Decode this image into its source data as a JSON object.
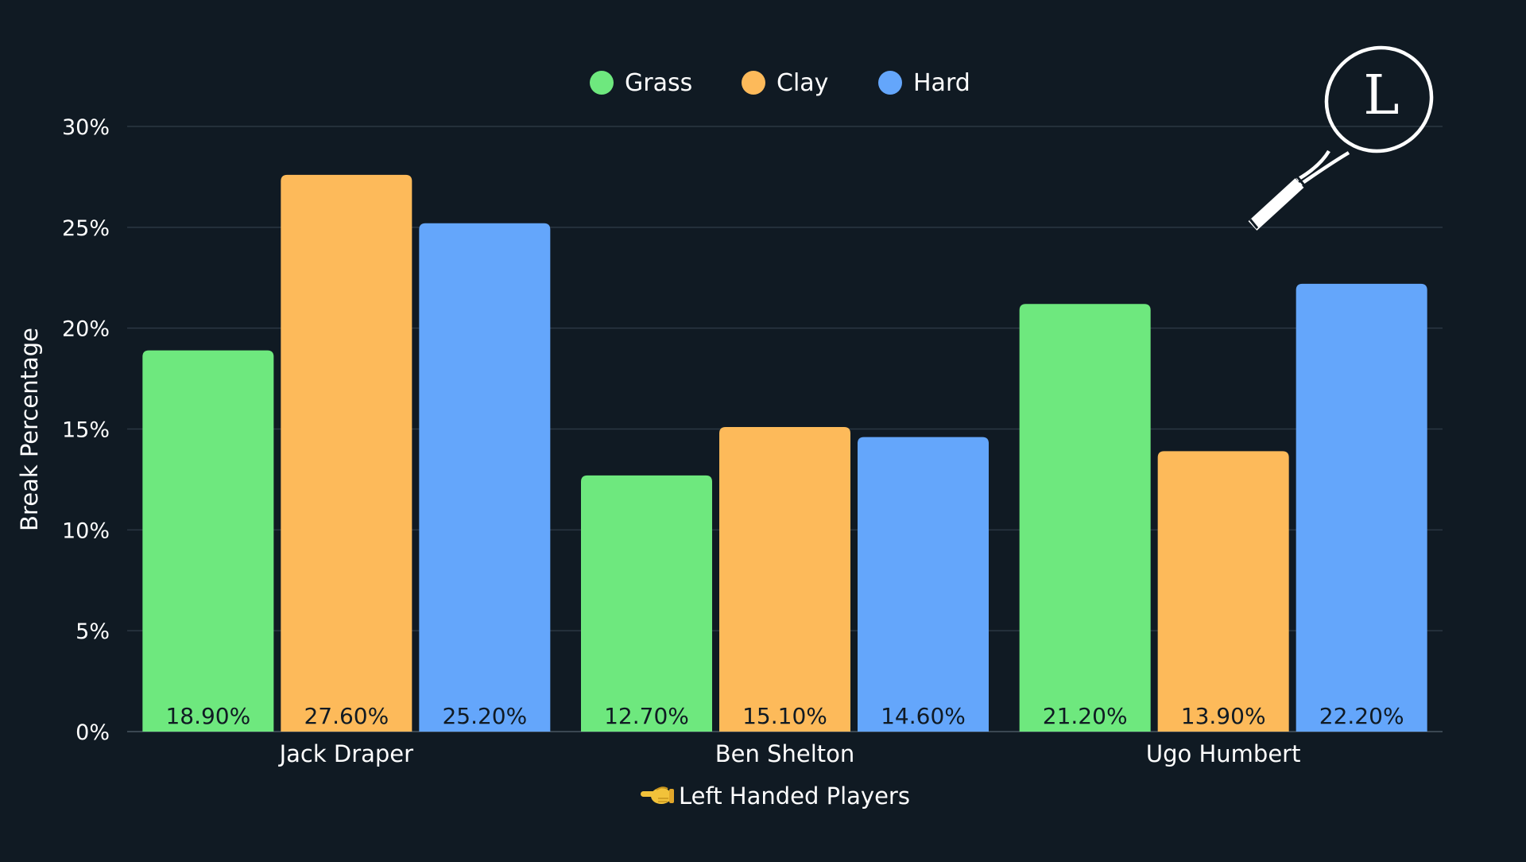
{
  "chart_data": {
    "type": "bar",
    "title": "",
    "categories": [
      "Jack Draper",
      "Ben Shelton",
      "Ugo Humbert"
    ],
    "series": [
      {
        "name": "Grass",
        "color": "#6ee87e",
        "values": [
          18.9,
          12.7,
          21.2
        ],
        "labels": [
          "18.90%",
          "12.70%",
          "21.20%"
        ]
      },
      {
        "name": "Clay",
        "color": "#fdba5a",
        "values": [
          27.6,
          15.1,
          13.9
        ],
        "labels": [
          "27.60%",
          "15.10%",
          "13.90%"
        ]
      },
      {
        "name": "Hard",
        "color": "#64a6fb",
        "values": [
          25.2,
          14.6,
          22.2
        ],
        "labels": [
          "25.20%",
          "14.60%",
          "22.20%"
        ]
      }
    ],
    "ylabel": "Break Percentage",
    "xlabel": "Left Handed Players",
    "xlabel_icon": "left-pointing-hand-icon",
    "ylim": [
      0,
      30
    ],
    "yticks": [
      0,
      5,
      10,
      15,
      20,
      25,
      30
    ],
    "ytick_labels": [
      "0%",
      "5%",
      "10%",
      "15%",
      "20%",
      "25%",
      "30%"
    ],
    "grid": true,
    "legend_position": "top-center"
  },
  "logo": {
    "name": "tennis-racket-logo",
    "letter": "L"
  },
  "colors": {
    "background": "#101a23",
    "grid": "#2b3743",
    "text": "#ffffff",
    "data_label": "#101a23"
  }
}
